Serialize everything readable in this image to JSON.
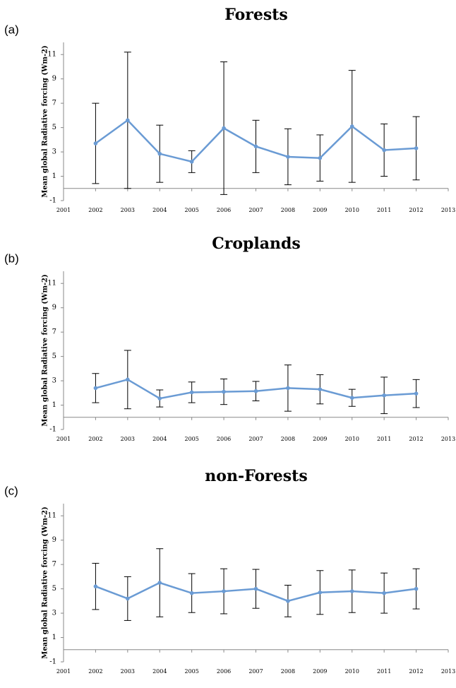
{
  "chart_data": [
    {
      "type": "line",
      "panel_label": "(a)",
      "title": "Forests",
      "y_label": "Mean global Radiative forcing (Wm-2)",
      "x": [
        2002,
        2003,
        2004,
        2005,
        2006,
        2007,
        2008,
        2009,
        2010,
        2011,
        2012
      ],
      "values": [
        3.7,
        5.6,
        2.85,
        2.2,
        4.95,
        3.45,
        2.6,
        2.5,
        5.1,
        3.15,
        3.3
      ],
      "errors": [
        3.3,
        5.6,
        2.35,
        0.9,
        5.45,
        2.15,
        2.3,
        1.9,
        4.6,
        2.15,
        2.6
      ],
      "color": "#6a9bd4",
      "xlim": [
        2001,
        2013
      ],
      "xticks": [
        2001,
        2002,
        2003,
        2004,
        2005,
        2006,
        2007,
        2008,
        2009,
        2010,
        2011,
        2012,
        2013
      ],
      "ylim": [
        -1,
        12
      ],
      "yticks": [
        -1,
        1,
        3,
        5,
        7,
        9,
        11
      ]
    },
    {
      "type": "line",
      "panel_label": "(b)",
      "title": "Croplands",
      "y_label": "Mean global Radiative forcing (Wm-2)",
      "x": [
        2002,
        2003,
        2004,
        2005,
        2006,
        2007,
        2008,
        2009,
        2010,
        2011,
        2012
      ],
      "values": [
        2.4,
        3.1,
        1.55,
        2.05,
        2.1,
        2.15,
        2.4,
        2.3,
        1.6,
        1.8,
        1.95
      ],
      "errors": [
        1.2,
        2.4,
        0.7,
        0.85,
        1.05,
        0.8,
        1.9,
        1.2,
        0.7,
        1.5,
        1.15
      ],
      "color": "#6a9bd4",
      "xlim": [
        2001,
        2013
      ],
      "xticks": [
        2001,
        2002,
        2003,
        2004,
        2005,
        2006,
        2007,
        2008,
        2009,
        2010,
        2011,
        2012,
        2013
      ],
      "ylim": [
        -1,
        12
      ],
      "yticks": [
        -1,
        1,
        3,
        5,
        7,
        9,
        11
      ]
    },
    {
      "type": "line",
      "panel_label": "(c)",
      "title": "non-Forests",
      "y_label": "Mean global Radiative forcing (Wm-2)",
      "x": [
        2002,
        2003,
        2004,
        2005,
        2006,
        2007,
        2008,
        2009,
        2010,
        2011,
        2012
      ],
      "values": [
        5.2,
        4.2,
        5.5,
        4.65,
        4.8,
        5.0,
        4.0,
        4.7,
        4.8,
        4.65,
        5.0
      ],
      "errors": [
        1.9,
        1.8,
        2.8,
        1.6,
        1.85,
        1.6,
        1.3,
        1.8,
        1.75,
        1.65,
        1.65
      ],
      "color": "#6a9bd4",
      "xlim": [
        2001,
        2013
      ],
      "xticks": [
        2001,
        2002,
        2003,
        2004,
        2005,
        2006,
        2007,
        2008,
        2009,
        2010,
        2011,
        2012,
        2013
      ],
      "ylim": [
        -1,
        12
      ],
      "yticks": [
        -1,
        1,
        3,
        5,
        7,
        9,
        11
      ]
    }
  ]
}
